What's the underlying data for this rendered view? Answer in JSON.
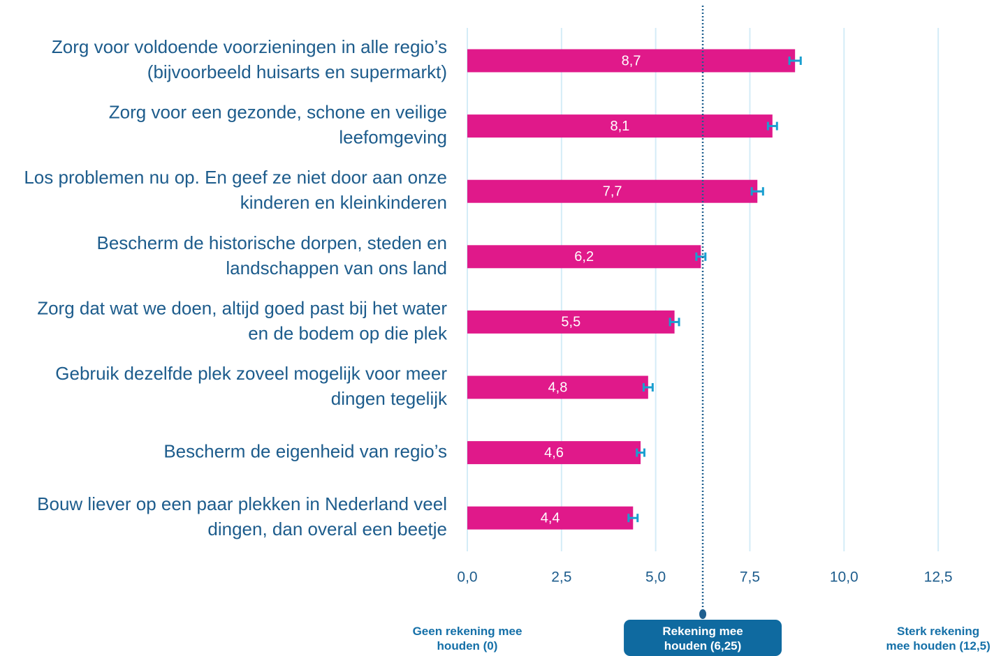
{
  "chart_data": {
    "type": "bar",
    "orientation": "horizontal",
    "categories": [
      [
        "Zorg voor voldoende voorzieningen in alle regio’s",
        "(bijvoorbeeld huisarts en supermarkt)"
      ],
      [
        "Zorg voor een gezonde, schone en veilige",
        "leefomgeving"
      ],
      [
        "Los problemen nu op. En geef ze niet door aan onze",
        "kinderen en kleinkinderen"
      ],
      [
        "Bescherm de historische dorpen, steden en",
        "landschappen van ons land"
      ],
      [
        "Zorg dat wat we doen, altijd goed past bij het water",
        "en de bodem op die plek"
      ],
      [
        "Gebruik dezelfde plek zoveel mogelijk voor meer",
        "dingen tegelijk"
      ],
      [
        "Bescherm de eigenheid van regio’s"
      ],
      [
        "Bouw liever op een paar plekken in Nederland veel",
        "dingen, dan overal een beetje"
      ]
    ],
    "values": [
      8.7,
      8.1,
      7.7,
      6.2,
      5.5,
      4.8,
      4.6,
      4.4
    ],
    "value_labels": [
      "8,7",
      "8,1",
      "7,7",
      "6,2",
      "5,5",
      "4,8",
      "4,6",
      "4,4"
    ],
    "errors": [
      0.15,
      0.12,
      0.15,
      0.12,
      0.12,
      0.12,
      0.1,
      0.12
    ],
    "color": "#e0198a",
    "error_color": "#1a9fd0",
    "xlim": [
      0,
      14
    ],
    "xticks": [
      {
        "value": 0,
        "label": "0,0"
      },
      {
        "value": 2.5,
        "label": "2,5"
      },
      {
        "value": 5,
        "label": "5,0"
      },
      {
        "value": 7.5,
        "label": "7,5"
      },
      {
        "value": 10,
        "label": "10,0"
      },
      {
        "value": 12.5,
        "label": "12,5"
      }
    ],
    "grid": true,
    "reference_line": {
      "value": 6.25,
      "color": "#1f5f8f"
    },
    "annotations": [
      {
        "value": 0,
        "lines": [
          "Geen rekening mee",
          "houden (0)"
        ]
      },
      {
        "value": 6.25,
        "lines": [
          "Rekening mee",
          "houden (6,25)"
        ],
        "boxed": true
      },
      {
        "value": 12.5,
        "lines": [
          "Sterk rekening",
          "mee houden (12,5)"
        ]
      }
    ]
  }
}
